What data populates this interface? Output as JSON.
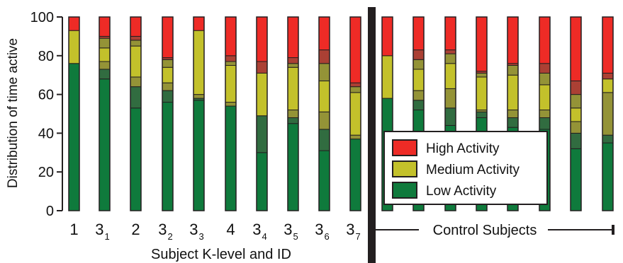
{
  "chart_data": {
    "type": "bar",
    "stacked": true,
    "ylabel": "Distribution of time active",
    "xlabel": "Subject K-level and ID",
    "ylim": [
      0,
      100
    ],
    "yticks": [
      0,
      20,
      40,
      60,
      80,
      100
    ],
    "grid": false,
    "categories": [
      {
        "main": "1",
        "sub": ""
      },
      {
        "main": "3",
        "sub": "1"
      },
      {
        "main": "2",
        "sub": ""
      },
      {
        "main": "3",
        "sub": "2"
      },
      {
        "main": "3",
        "sub": "3"
      },
      {
        "main": "4",
        "sub": ""
      },
      {
        "main": "3",
        "sub": "4"
      },
      {
        "main": "3",
        "sub": "5"
      },
      {
        "main": "3",
        "sub": "6"
      },
      {
        "main": "3",
        "sub": "7"
      }
    ],
    "control_group_label": "Control Subjects",
    "control_count": 8,
    "series": [
      {
        "name": "Low Activity",
        "color": "#0f7a3c"
      },
      {
        "name": "Medium Activity",
        "color": "#c3c12b"
      },
      {
        "name": "High Activity",
        "color": "#ee2b26"
      }
    ],
    "legend": {
      "position": "lower-right",
      "order": [
        "High Activity",
        "Medium Activity",
        "Low Activity"
      ]
    },
    "bars": [
      {
        "segments": [
          {
            "series": "Low Activity",
            "value": 76
          },
          {
            "series": "Medium Activity",
            "value": 17
          },
          {
            "series": "High Activity",
            "value": 7
          }
        ]
      },
      {
        "segments": [
          {
            "series": "Low Activity",
            "value": 68
          },
          {
            "series": "Low Activity",
            "value": 5
          },
          {
            "series": "Medium Activity",
            "value": 4
          },
          {
            "series": "Medium Activity",
            "value": 7
          },
          {
            "series": "Medium Activity",
            "value": 5
          },
          {
            "series": "High Activity",
            "value": 1
          },
          {
            "series": "High Activity",
            "value": 10
          }
        ]
      },
      {
        "segments": [
          {
            "series": "Low Activity",
            "value": 53
          },
          {
            "series": "Low Activity",
            "value": 11
          },
          {
            "series": "Medium Activity",
            "value": 5
          },
          {
            "series": "Medium Activity",
            "value": 16
          },
          {
            "series": "Medium Activity",
            "value": 3
          },
          {
            "series": "High Activity",
            "value": 2
          },
          {
            "series": "High Activity",
            "value": 10
          }
        ]
      },
      {
        "segments": [
          {
            "series": "Low Activity",
            "value": 56
          },
          {
            "series": "Low Activity",
            "value": 6
          },
          {
            "series": "Medium Activity",
            "value": 4
          },
          {
            "series": "Medium Activity",
            "value": 8
          },
          {
            "series": "Medium Activity",
            "value": 4
          },
          {
            "series": "High Activity",
            "value": 1
          },
          {
            "series": "High Activity",
            "value": 21
          }
        ]
      },
      {
        "segments": [
          {
            "series": "Low Activity",
            "value": 57
          },
          {
            "series": "Low Activity",
            "value": 1
          },
          {
            "series": "Medium Activity",
            "value": 2
          },
          {
            "series": "Medium Activity",
            "value": 33
          },
          {
            "series": "High Activity",
            "value": 7
          }
        ]
      },
      {
        "segments": [
          {
            "series": "Low Activity",
            "value": 54
          },
          {
            "series": "Medium Activity",
            "value": 2
          },
          {
            "series": "Medium Activity",
            "value": 19
          },
          {
            "series": "Medium Activity",
            "value": 2
          },
          {
            "series": "High Activity",
            "value": 3
          },
          {
            "series": "High Activity",
            "value": 20
          }
        ]
      },
      {
        "segments": [
          {
            "series": "Low Activity",
            "value": 30
          },
          {
            "series": "Low Activity",
            "value": 19
          },
          {
            "series": "Medium Activity",
            "value": 22
          },
          {
            "series": "High Activity",
            "value": 6
          },
          {
            "series": "High Activity",
            "value": 23
          }
        ]
      },
      {
        "segments": [
          {
            "series": "Low Activity",
            "value": 45
          },
          {
            "series": "Low Activity",
            "value": 3
          },
          {
            "series": "Medium Activity",
            "value": 4
          },
          {
            "series": "Medium Activity",
            "value": 22
          },
          {
            "series": "Medium Activity",
            "value": 2
          },
          {
            "series": "High Activity",
            "value": 3
          },
          {
            "series": "High Activity",
            "value": 21
          }
        ]
      },
      {
        "segments": [
          {
            "series": "Low Activity",
            "value": 31
          },
          {
            "series": "Low Activity",
            "value": 11
          },
          {
            "series": "Medium Activity",
            "value": 9
          },
          {
            "series": "Medium Activity",
            "value": 16
          },
          {
            "series": "Medium Activity",
            "value": 9
          },
          {
            "series": "High Activity",
            "value": 7
          },
          {
            "series": "High Activity",
            "value": 17
          }
        ]
      },
      {
        "segments": [
          {
            "series": "Low Activity",
            "value": 37
          },
          {
            "series": "Medium Activity",
            "value": 2
          },
          {
            "series": "Medium Activity",
            "value": 22
          },
          {
            "series": "Medium Activity",
            "value": 3
          },
          {
            "series": "High Activity",
            "value": 2
          },
          {
            "series": "High Activity",
            "value": 34
          }
        ]
      },
      {
        "segments": [
          {
            "series": "Low Activity",
            "value": 58
          },
          {
            "series": "Medium Activity",
            "value": 22
          },
          {
            "series": "High Activity",
            "value": 20
          }
        ]
      },
      {
        "segments": [
          {
            "series": "Low Activity",
            "value": 52
          },
          {
            "series": "Low Activity",
            "value": 5
          },
          {
            "series": "Medium Activity",
            "value": 5
          },
          {
            "series": "Medium Activity",
            "value": 11
          },
          {
            "series": "Medium Activity",
            "value": 5
          },
          {
            "series": "High Activity",
            "value": 5
          },
          {
            "series": "High Activity",
            "value": 17
          }
        ]
      },
      {
        "segments": [
          {
            "series": "Low Activity",
            "value": 44
          },
          {
            "series": "Low Activity",
            "value": 9
          },
          {
            "series": "Medium Activity",
            "value": 10
          },
          {
            "series": "Medium Activity",
            "value": 13
          },
          {
            "series": "Medium Activity",
            "value": 5
          },
          {
            "series": "High Activity",
            "value": 2
          },
          {
            "series": "High Activity",
            "value": 17
          }
        ]
      },
      {
        "segments": [
          {
            "series": "Low Activity",
            "value": 48
          },
          {
            "series": "Low Activity",
            "value": 3
          },
          {
            "series": "Medium Activity",
            "value": 1
          },
          {
            "series": "Medium Activity",
            "value": 17
          },
          {
            "series": "Medium Activity",
            "value": 2
          },
          {
            "series": "High Activity",
            "value": 1
          },
          {
            "series": "High Activity",
            "value": 28
          }
        ]
      },
      {
        "segments": [
          {
            "series": "Low Activity",
            "value": 43
          },
          {
            "series": "Low Activity",
            "value": 5
          },
          {
            "series": "Medium Activity",
            "value": 4
          },
          {
            "series": "Medium Activity",
            "value": 18
          },
          {
            "series": "Medium Activity",
            "value": 5
          },
          {
            "series": "High Activity",
            "value": 1
          },
          {
            "series": "High Activity",
            "value": 24
          }
        ]
      },
      {
        "segments": [
          {
            "series": "Low Activity",
            "value": 42
          },
          {
            "series": "Low Activity",
            "value": 6
          },
          {
            "series": "Medium Activity",
            "value": 4
          },
          {
            "series": "Medium Activity",
            "value": 13
          },
          {
            "series": "Medium Activity",
            "value": 6
          },
          {
            "series": "High Activity",
            "value": 5
          },
          {
            "series": "High Activity",
            "value": 24
          }
        ]
      },
      {
        "segments": [
          {
            "series": "Low Activity",
            "value": 32
          },
          {
            "series": "Low Activity",
            "value": 8
          },
          {
            "series": "Medium Activity",
            "value": 6
          },
          {
            "series": "Medium Activity",
            "value": 7
          },
          {
            "series": "Medium Activity",
            "value": 7
          },
          {
            "series": "High Activity",
            "value": 7
          },
          {
            "series": "High Activity",
            "value": 33
          }
        ]
      },
      {
        "segments": [
          {
            "series": "Low Activity",
            "value": 35
          },
          {
            "series": "Low Activity",
            "value": 4
          },
          {
            "series": "Medium Activity",
            "value": 22
          },
          {
            "series": "Medium Activity",
            "value": 7
          },
          {
            "series": "High Activity",
            "value": 3
          },
          {
            "series": "High Activity",
            "value": 29
          }
        ]
      }
    ]
  }
}
